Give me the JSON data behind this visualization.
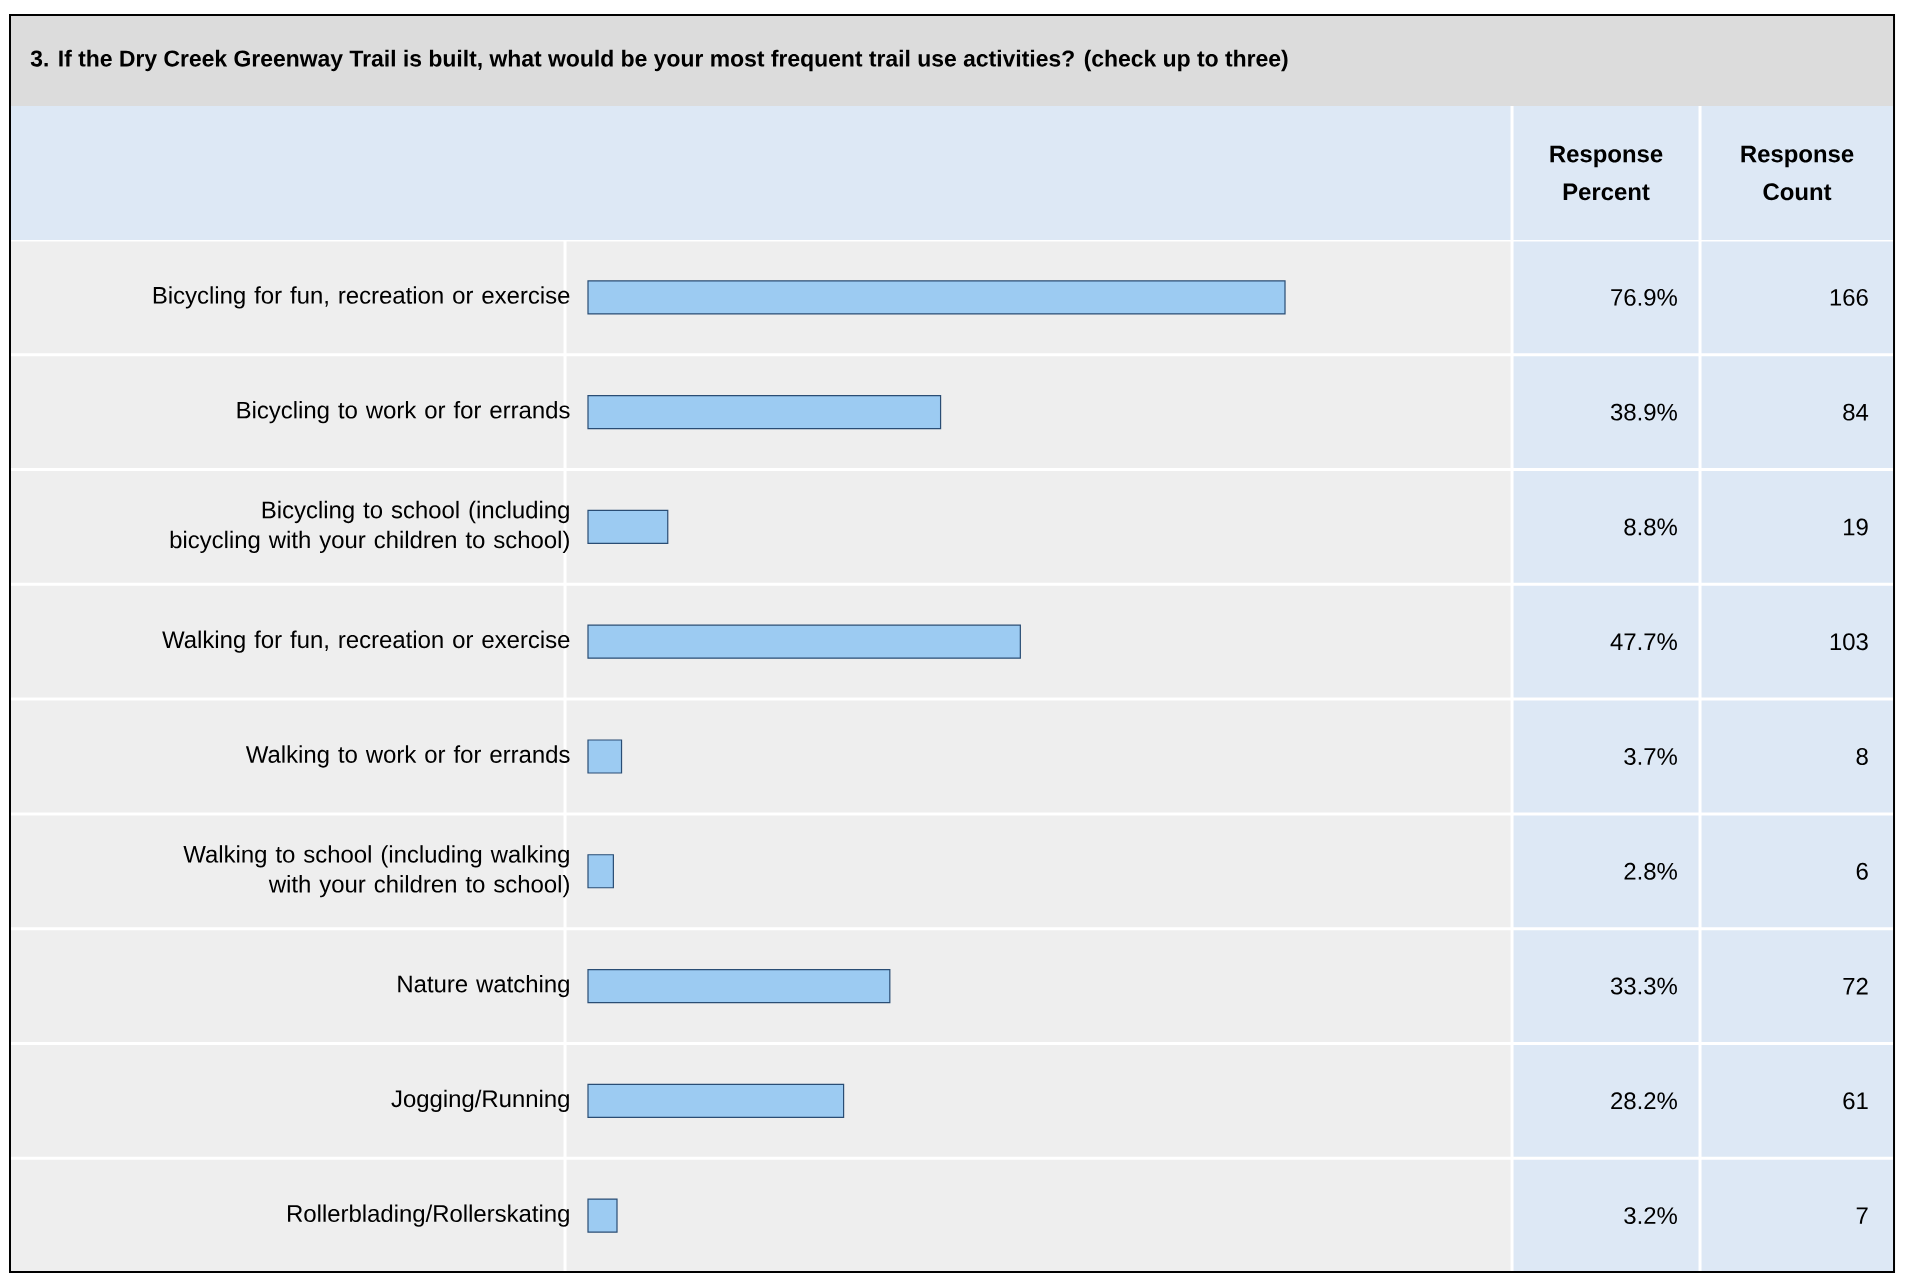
{
  "chart_data": {
    "type": "bar",
    "orientation": "horizontal",
    "title": "3. If the Dry Creek Greenway Trail is built, what would be your most frequent trail use activities? (check up to three)",
    "categories": [
      "Bicycling for fun, recreation or exercise",
      "Bicycling to work or for errands",
      "Bicycling to school (including bicycling with your children to school)",
      "Walking for fun, recreation or exercise",
      "Walking to work or for errands",
      "Walking to school (including walking with your children to school)",
      "Nature watching",
      "Jogging/Running",
      "Rollerblading/Rollerskating"
    ],
    "series": [
      {
        "name": "Response Percent",
        "color": "#9ccbf2",
        "values": [
          76.9,
          38.9,
          8.8,
          47.7,
          3.7,
          2.8,
          33.3,
          28.2,
          3.2
        ],
        "value_labels": [
          "76.9%",
          "38.9%",
          "8.8%",
          "47.7%",
          "3.7%",
          "2.8%",
          "33.3%",
          "28.2%",
          "3.2%"
        ]
      }
    ],
    "annotations": [
      "Response Count",
      "166",
      "84",
      "19",
      "103",
      "8",
      "6",
      "72",
      "61",
      "7"
    ]
  }
}
